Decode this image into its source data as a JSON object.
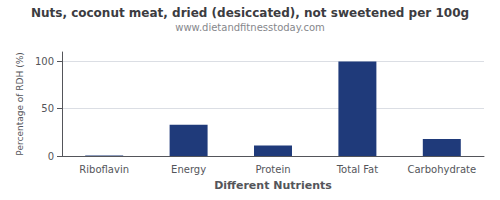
{
  "chart_data": {
    "type": "bar",
    "title": "Nuts, coconut meat, dried (desiccated), not sweetened per 100g",
    "subtitle": "www.dietandfitnesstoday.com",
    "xlabel": "Different Nutrients",
    "ylabel": "Percentage of RDH (%)",
    "categories": [
      "Riboflavin",
      "Energy",
      "Protein",
      "Total Fat",
      "Carbohydrate"
    ],
    "values": [
      0.5,
      33,
      11,
      100,
      18
    ],
    "color": "#1F3A7A",
    "ylim": [
      0,
      110
    ],
    "yticks": [
      0,
      50,
      100
    ],
    "grid": true
  }
}
